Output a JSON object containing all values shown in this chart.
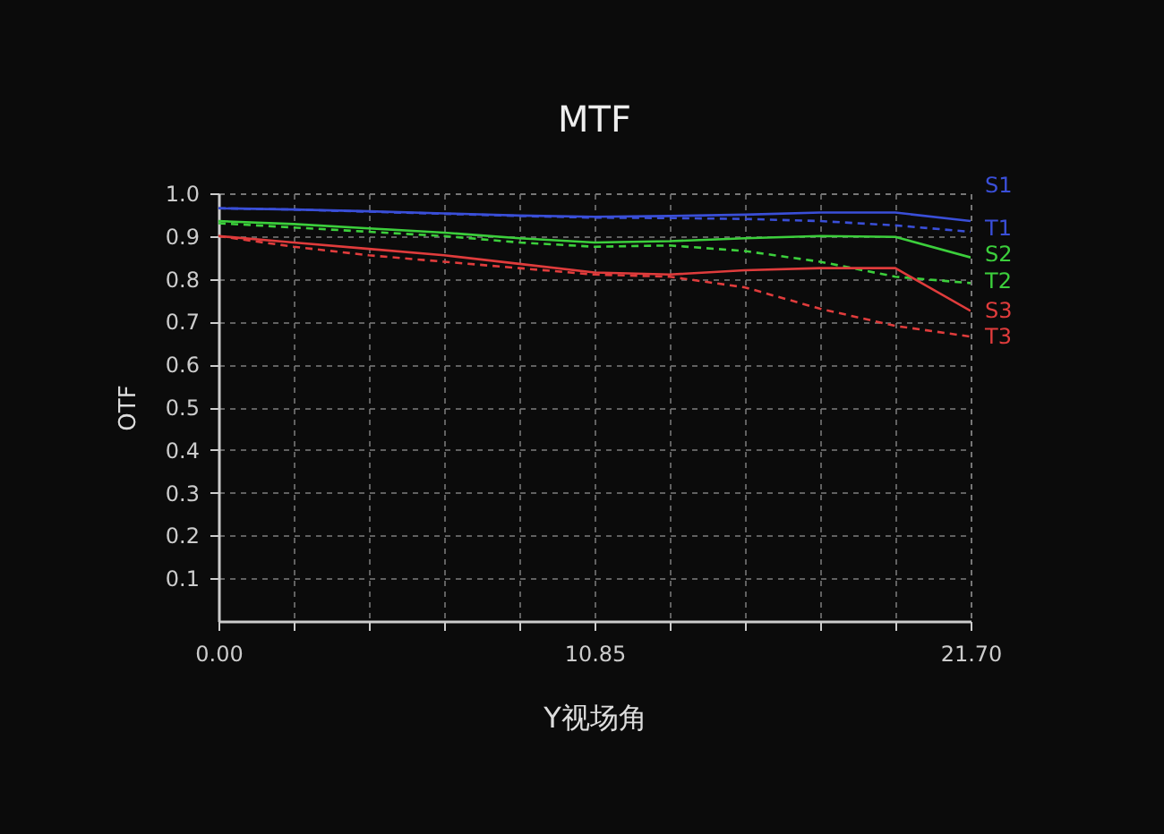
{
  "chart_data": {
    "type": "line",
    "title": "MTF",
    "xlabel": "Y视场角",
    "ylabel": "OTF",
    "x": [
      0,
      2.17,
      4.34,
      6.51,
      8.68,
      10.85,
      13.02,
      15.19,
      17.36,
      19.53,
      21.7
    ],
    "series": [
      {
        "name": "S1",
        "color": "#3a4fd8",
        "line_style": "solid",
        "values": [
          0.965,
          0.962,
          0.958,
          0.953,
          0.948,
          0.945,
          0.947,
          0.95,
          0.955,
          0.955,
          0.935
        ]
      },
      {
        "name": "T1",
        "color": "#3a4fd8",
        "line_style": "dashed",
        "values": [
          0.965,
          0.962,
          0.957,
          0.952,
          0.947,
          0.943,
          0.942,
          0.94,
          0.935,
          0.925,
          0.91
        ]
      },
      {
        "name": "S2",
        "color": "#3ccf3c",
        "line_style": "solid",
        "values": [
          0.935,
          0.928,
          0.918,
          0.908,
          0.895,
          0.885,
          0.888,
          0.895,
          0.9,
          0.898,
          0.85
        ]
      },
      {
        "name": "T2",
        "color": "#3ccf3c",
        "line_style": "dashed",
        "values": [
          0.93,
          0.92,
          0.91,
          0.9,
          0.885,
          0.875,
          0.878,
          0.865,
          0.84,
          0.805,
          0.79
        ]
      },
      {
        "name": "S3",
        "color": "#e03c3c",
        "line_style": "solid",
        "values": [
          0.9,
          0.885,
          0.87,
          0.855,
          0.835,
          0.815,
          0.81,
          0.82,
          0.825,
          0.825,
          0.725
        ]
      },
      {
        "name": "T3",
        "color": "#e03c3c",
        "line_style": "dashed",
        "values": [
          0.9,
          0.875,
          0.855,
          0.84,
          0.825,
          0.81,
          0.805,
          0.78,
          0.73,
          0.69,
          0.665
        ]
      }
    ],
    "xlim": [
      0,
      21.7
    ],
    "xticks": [
      {
        "value": 0,
        "label": "0.00"
      },
      {
        "value": 2.17,
        "label": null
      },
      {
        "value": 4.34,
        "label": null
      },
      {
        "value": 6.51,
        "label": null
      },
      {
        "value": 8.68,
        "label": null
      },
      {
        "value": 10.85,
        "label": "10.85"
      },
      {
        "value": 13.02,
        "label": null
      },
      {
        "value": 15.19,
        "label": null
      },
      {
        "value": 17.36,
        "label": null
      },
      {
        "value": 19.53,
        "label": null
      },
      {
        "value": 21.7,
        "label": "21.70"
      }
    ],
    "ylim": [
      0,
      1
    ],
    "yticks": [
      0.1,
      0.2,
      0.3,
      0.4,
      0.5,
      0.6,
      0.7,
      0.8,
      0.9,
      {
        "value": 1,
        "label": "1.0"
      }
    ],
    "grid": true,
    "legend": false,
    "marker": "none"
  }
}
